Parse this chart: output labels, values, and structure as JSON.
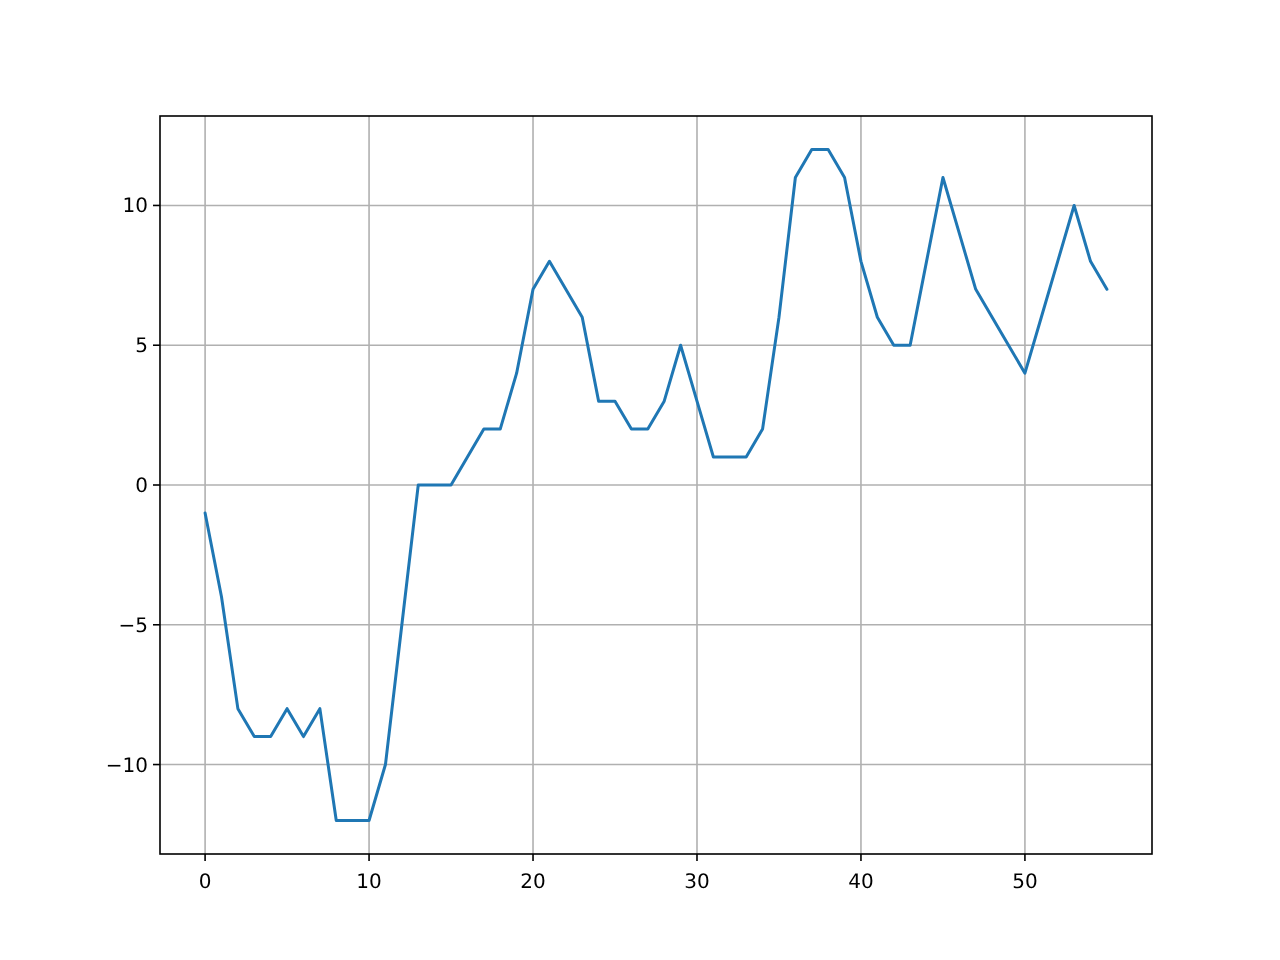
{
  "chart_data": {
    "type": "line",
    "x": [
      0,
      1,
      2,
      3,
      4,
      5,
      6,
      7,
      8,
      9,
      10,
      11,
      12,
      13,
      14,
      15,
      16,
      17,
      18,
      19,
      20,
      21,
      22,
      23,
      24,
      25,
      26,
      27,
      28,
      29,
      30,
      31,
      32,
      33,
      34,
      35,
      36,
      37,
      38,
      39,
      40,
      41,
      42,
      43,
      44,
      45,
      46,
      47,
      48,
      49,
      50,
      51,
      52,
      53,
      54,
      55
    ],
    "series": [
      {
        "color": "#1f77b4",
        "values": [
          -1,
          -4,
          -8,
          -9,
          -9,
          -8,
          -9,
          -8,
          -12,
          -12,
          -12,
          -10,
          -5,
          0,
          0,
          0,
          1,
          2,
          2,
          4,
          7,
          8,
          7,
          6,
          3,
          3,
          2,
          2,
          3,
          5,
          3,
          1,
          1,
          1,
          2,
          6,
          11,
          12,
          12,
          11,
          8,
          6,
          5,
          5,
          8,
          11,
          9,
          7,
          6,
          5,
          4,
          6,
          8,
          10,
          8,
          7
        ]
      }
    ],
    "xlim": [
      -2.75,
      57.75
    ],
    "ylim": [
      -13.2,
      13.2
    ],
    "xticks": [
      0,
      10,
      20,
      30,
      40,
      50
    ],
    "yticks": [
      {
        "value": -10,
        "label": "−10"
      },
      {
        "value": -5,
        "label": "−5"
      },
      0,
      5,
      10
    ],
    "grid": true
  }
}
